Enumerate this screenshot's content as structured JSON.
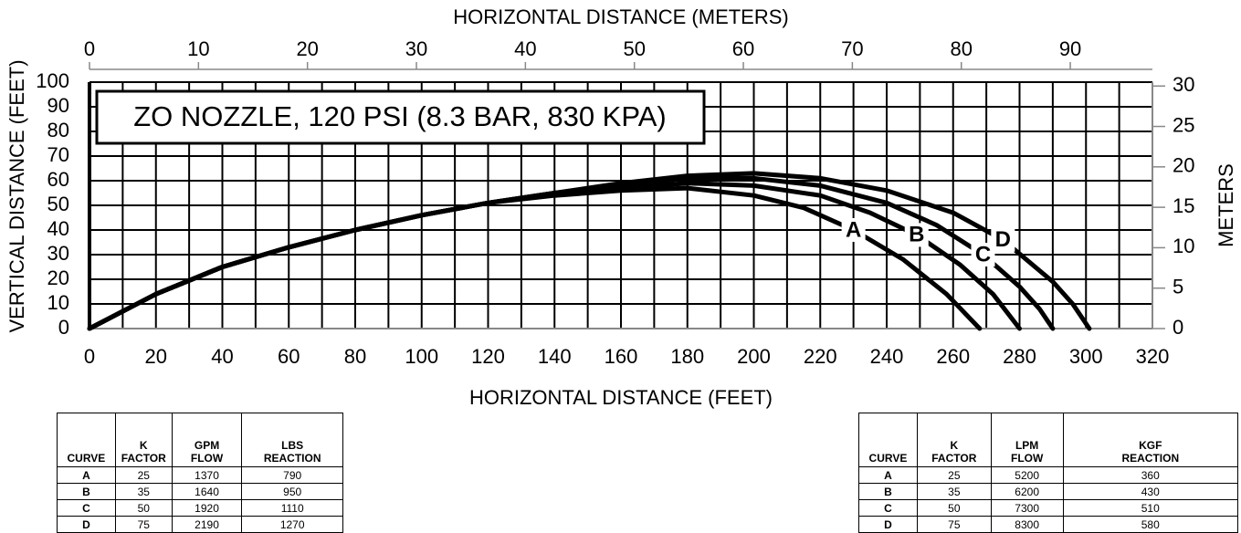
{
  "chart_data": {
    "type": "line",
    "title": "ZO NOZZLE, 120 PSI (8.3 BAR, 830 KPA)",
    "x_label": "HORIZONTAL DISTANCE (FEET)",
    "y_label": "VERTICAL DISTANCE (FEET)",
    "x2_label": "HORIZONTAL DISTANCE (METERS)",
    "y2_label": "METERS",
    "xlim": [
      0,
      320
    ],
    "xticks": [
      0,
      20,
      40,
      60,
      80,
      100,
      120,
      140,
      160,
      180,
      200,
      220,
      240,
      260,
      280,
      300,
      320
    ],
    "xminorticks": [
      10,
      30,
      50,
      70,
      90,
      110,
      130,
      150,
      170,
      190,
      210,
      230,
      250,
      270,
      290,
      310
    ],
    "ylim": [
      0,
      100
    ],
    "yticks": [
      0,
      10,
      20,
      30,
      40,
      50,
      60,
      70,
      80,
      90,
      100
    ],
    "x2lim": [
      0,
      97.536
    ],
    "x2ticks": [
      0,
      10,
      20,
      30,
      40,
      50,
      60,
      70,
      80,
      90
    ],
    "y2lim": [
      0,
      30.48
    ],
    "y2ticks": [
      0,
      5,
      10,
      15,
      20,
      25,
      30
    ],
    "grid": true,
    "series": [
      {
        "name": "A",
        "color": "#000000",
        "x": [
          0,
          20,
          40,
          60,
          80,
          100,
          120,
          140,
          160,
          180,
          200,
          215,
          230,
          245,
          258,
          268
        ],
        "values": [
          0,
          14,
          25,
          33,
          40,
          46,
          51,
          54,
          56,
          57,
          54,
          49,
          40,
          28,
          14,
          0
        ]
      },
      {
        "name": "B",
        "color": "#000000",
        "x": [
          0,
          20,
          40,
          60,
          80,
          100,
          120,
          140,
          160,
          180,
          200,
          220,
          235,
          249,
          262,
          272,
          280
        ],
        "values": [
          0,
          14,
          25,
          33,
          40,
          46,
          51,
          55,
          57,
          59,
          58,
          54,
          47,
          38,
          26,
          14,
          0
        ]
      },
      {
        "name": "C",
        "color": "#000000",
        "x": [
          0,
          20,
          40,
          60,
          80,
          100,
          120,
          140,
          160,
          180,
          200,
          220,
          240,
          255,
          269,
          280,
          286,
          290
        ],
        "values": [
          0,
          14,
          25,
          33,
          40,
          46,
          51,
          55,
          58,
          61,
          61,
          58,
          51,
          42,
          30,
          17,
          8,
          0
        ]
      },
      {
        "name": "D",
        "color": "#000000",
        "x": [
          0,
          20,
          40,
          60,
          80,
          100,
          120,
          140,
          160,
          180,
          200,
          220,
          240,
          260,
          275,
          290,
          296,
          301
        ],
        "values": [
          0,
          14,
          25,
          33,
          40,
          46,
          51,
          55,
          59,
          62,
          63,
          61,
          56,
          47,
          36,
          19,
          10,
          0
        ]
      }
    ]
  },
  "tables": [
    {
      "header": [
        "CURVE",
        "K\nFACTOR",
        "GPM\nFLOW",
        "LBS\nREACTION"
      ],
      "rows": [
        [
          "A",
          "25",
          "1370",
          "790"
        ],
        [
          "B",
          "35",
          "1640",
          "950"
        ],
        [
          "C",
          "50",
          "1920",
          "1110"
        ],
        [
          "D",
          "75",
          "2190",
          "1270"
        ]
      ]
    },
    {
      "header": [
        "CURVE",
        "K\nFACTOR",
        "LPM\nFLOW",
        "KGF\nREACTION"
      ],
      "rows": [
        [
          "A",
          "25",
          "5200",
          "360"
        ],
        [
          "B",
          "35",
          "6200",
          "430"
        ],
        [
          "C",
          "50",
          "7300",
          "510"
        ],
        [
          "D",
          "75",
          "8300",
          "580"
        ]
      ]
    }
  ]
}
